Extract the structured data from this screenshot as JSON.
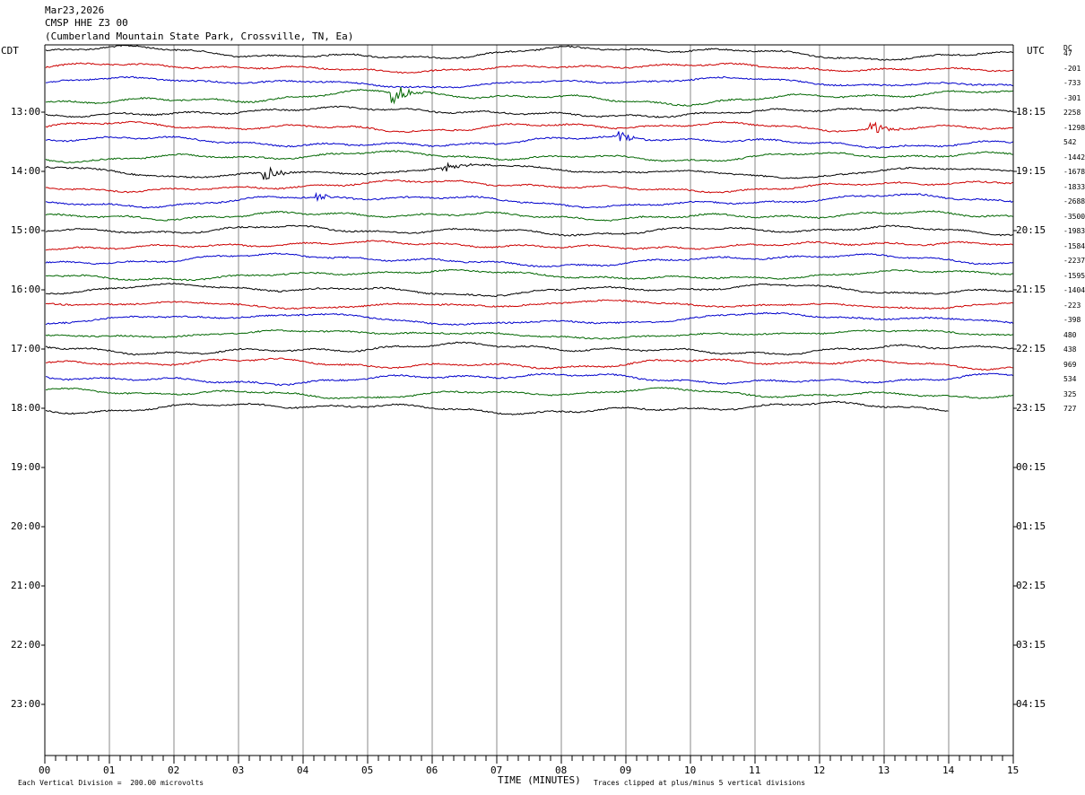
{
  "header": {
    "date": "Mar23,2026",
    "station": "CMSP HHE Z3 00",
    "location": "(Cumberland Mountain State Park, Crossville, TN, Ea)"
  },
  "left_axis_label": "CDT",
  "right_axis_label": "UTC",
  "dc_label": "DC",
  "footer": {
    "vertical_division": "Each Vertical Division =  200.00 microvolts",
    "xlabel": "TIME (MINUTES)",
    "clip_note": "Traces clipped at plus/minus 5 vertical divisions"
  },
  "colors": {
    "trace_cycle": [
      "#000000",
      "#cc0000",
      "#0000cc",
      "#006600"
    ],
    "grid": "#888888",
    "border": "#000000"
  },
  "chart_data": {
    "type": "line",
    "xlim": [
      0,
      15
    ],
    "x_ticks": [
      "00",
      "01",
      "02",
      "03",
      "04",
      "05",
      "06",
      "07",
      "08",
      "09",
      "10",
      "11",
      "12",
      "13",
      "14",
      "15"
    ],
    "left_hour_labels": [
      "13:00",
      "14:00",
      "15:00",
      "16:00",
      "17:00",
      "18:00",
      "19:00",
      "20:00",
      "21:00",
      "22:00",
      "23:00"
    ],
    "right_hour_labels": [
      "18:15",
      "19:15",
      "20:15",
      "21:15",
      "22:15",
      "23:15",
      "00:15",
      "01:15",
      "02:15",
      "03:15",
      "04:15"
    ],
    "traces_per_hour": 4,
    "trace_count": 25,
    "last_trace_end_minute": 14,
    "dc_offsets": [
      "47",
      "-201",
      "-733",
      "-301",
      "2258",
      "-1298",
      "542",
      "-1442",
      "-1678",
      "-1833",
      "-2688",
      "-3500",
      "-1983",
      "-1584",
      "-2237",
      "-1595",
      "-1404",
      "-223",
      "-398",
      "480",
      "438",
      "969",
      "534",
      "325",
      "727"
    ],
    "events": [
      {
        "trace": 3,
        "minute": 5.4,
        "amplitude": 12
      },
      {
        "trace": 5,
        "minute": 12.8,
        "amplitude": 9
      },
      {
        "trace": 6,
        "minute": 8.9,
        "amplitude": 7
      },
      {
        "trace": 8,
        "minute": 3.4,
        "amplitude": 9
      },
      {
        "trace": 8,
        "minute": 6.2,
        "amplitude": 7
      },
      {
        "trace": 10,
        "minute": 4.2,
        "amplitude": 5
      }
    ]
  }
}
